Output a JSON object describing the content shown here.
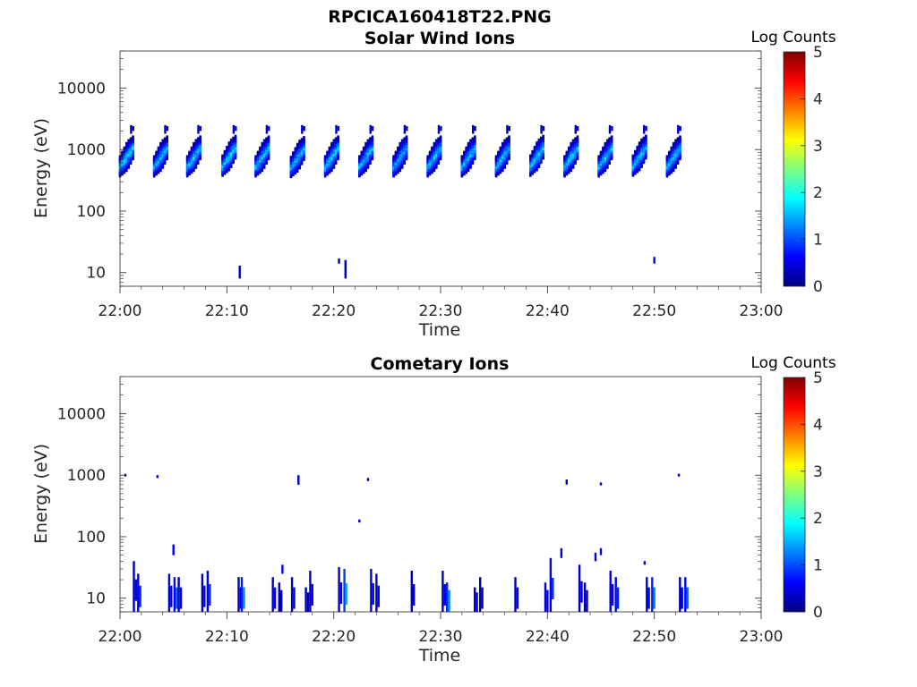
{
  "figure": {
    "title": "RPCICA160418T22.PNG"
  },
  "colorscale": {
    "stops": [
      "#00007f",
      "#0000ff",
      "#007fff",
      "#00ffff",
      "#7fff7f",
      "#ffff00",
      "#ff7f00",
      "#ff0000",
      "#7f0000"
    ]
  },
  "chart_data": [
    {
      "type": "heatmap",
      "title": "Solar Wind Ions",
      "xlabel": "Time",
      "ylabel": "Energy (eV)",
      "xlim": [
        "22:00",
        "23:00"
      ],
      "x_ticks": [
        "22:00",
        "22:10",
        "22:20",
        "22:30",
        "22:40",
        "22:50",
        "23:00"
      ],
      "y_scale": "log",
      "ylim": [
        6,
        40000
      ],
      "y_ticks": [
        10,
        100,
        1000,
        10000
      ],
      "y_tick_labels": [
        "10",
        "100",
        "1000",
        "10000"
      ],
      "colorbar": {
        "label": "Log Counts",
        "range": [
          0,
          5
        ],
        "ticks": [
          "0",
          "1",
          "2",
          "3",
          "4",
          "5"
        ]
      },
      "clusters": [
        {
          "t": 0.6,
          "e_center": 800,
          "peak": 1.7
        },
        {
          "t": 3.8,
          "e_center": 800,
          "peak": 1.6
        },
        {
          "t": 6.9,
          "e_center": 800,
          "peak": 1.6
        },
        {
          "t": 10.2,
          "e_center": 820,
          "peak": 1.7
        },
        {
          "t": 13.3,
          "e_center": 800,
          "peak": 1.6
        },
        {
          "t": 16.6,
          "e_center": 780,
          "peak": 1.6
        },
        {
          "t": 19.8,
          "e_center": 800,
          "peak": 1.7
        },
        {
          "t": 23.0,
          "e_center": 800,
          "peak": 1.6
        },
        {
          "t": 26.2,
          "e_center": 800,
          "peak": 1.5
        },
        {
          "t": 29.4,
          "e_center": 800,
          "peak": 1.6
        },
        {
          "t": 32.6,
          "e_center": 800,
          "peak": 1.6
        },
        {
          "t": 35.8,
          "e_center": 800,
          "peak": 1.6
        },
        {
          "t": 39.0,
          "e_center": 820,
          "peak": 1.7
        },
        {
          "t": 42.2,
          "e_center": 800,
          "peak": 1.7
        },
        {
          "t": 45.4,
          "e_center": 800,
          "peak": 1.6
        },
        {
          "t": 48.6,
          "e_center": 820,
          "peak": 1.6
        },
        {
          "t": 51.8,
          "e_center": 800,
          "peak": 1.6
        }
      ],
      "isolated": [
        {
          "t": 11.1,
          "e_low": 8,
          "e_high": 13,
          "v": 0.3
        },
        {
          "t": 20.4,
          "e_low": 14,
          "e_high": 17,
          "v": 0.3
        },
        {
          "t": 21.0,
          "e_low": 8,
          "e_high": 16,
          "v": 0.3
        },
        {
          "t": 49.9,
          "e_low": 14,
          "e_high": 18,
          "v": 0.6
        }
      ]
    },
    {
      "type": "heatmap",
      "title": "Cometary Ions",
      "xlabel": "Time",
      "ylabel": "Energy (eV)",
      "xlim": [
        "22:00",
        "23:00"
      ],
      "x_ticks": [
        "22:00",
        "22:10",
        "22:20",
        "22:30",
        "22:40",
        "22:50",
        "23:00"
      ],
      "y_scale": "log",
      "ylim": [
        6,
        40000
      ],
      "y_ticks": [
        10,
        100,
        1000,
        10000
      ],
      "y_tick_labels": [
        "10",
        "100",
        "1000",
        "10000"
      ],
      "colorbar": {
        "label": "Log Counts",
        "range": [
          0,
          5
        ],
        "ticks": [
          "0",
          "1",
          "2",
          "3",
          "4",
          "5"
        ]
      },
      "bars": [
        {
          "t": 1.2,
          "e_low": 6,
          "e_high": 40,
          "v": 0.5
        },
        {
          "t": 1.6,
          "e_low": 6,
          "e_high": 25,
          "v": 0.9
        },
        {
          "t": 4.5,
          "e_low": 6,
          "e_high": 25,
          "v": 0.6
        },
        {
          "t": 5.0,
          "e_low": 6,
          "e_high": 22,
          "v": 1.1
        },
        {
          "t": 5.4,
          "e_low": 6,
          "e_high": 22,
          "v": 0.5
        },
        {
          "t": 7.6,
          "e_low": 6,
          "e_high": 25,
          "v": 0.5
        },
        {
          "t": 8.1,
          "e_low": 6,
          "e_high": 28,
          "v": 0.8
        },
        {
          "t": 11.0,
          "e_low": 6,
          "e_high": 22,
          "v": 0.5
        },
        {
          "t": 11.3,
          "e_low": 6,
          "e_high": 22,
          "v": 1.3
        },
        {
          "t": 14.2,
          "e_low": 6,
          "e_high": 22,
          "v": 0.6
        },
        {
          "t": 14.8,
          "e_low": 6,
          "e_high": 18,
          "v": 0.4
        },
        {
          "t": 16.0,
          "e_low": 6,
          "e_high": 22,
          "v": 0.5
        },
        {
          "t": 17.3,
          "e_low": 6,
          "e_high": 15,
          "v": 0.3
        },
        {
          "t": 17.7,
          "e_low": 6,
          "e_high": 28,
          "v": 0.6
        },
        {
          "t": 20.4,
          "e_low": 6,
          "e_high": 32,
          "v": 0.6
        },
        {
          "t": 20.9,
          "e_low": 6,
          "e_high": 30,
          "v": 1.5
        },
        {
          "t": 23.4,
          "e_low": 6,
          "e_high": 30,
          "v": 0.7
        },
        {
          "t": 23.9,
          "e_low": 6,
          "e_high": 25,
          "v": 0.6
        },
        {
          "t": 27.2,
          "e_low": 6,
          "e_high": 28,
          "v": 0.5
        },
        {
          "t": 30.1,
          "e_low": 6,
          "e_high": 28,
          "v": 0.5
        },
        {
          "t": 30.5,
          "e_low": 6,
          "e_high": 18,
          "v": 1.3
        },
        {
          "t": 33.1,
          "e_low": 6,
          "e_high": 15,
          "v": 0.6
        },
        {
          "t": 33.6,
          "e_low": 6,
          "e_high": 22,
          "v": 0.3
        },
        {
          "t": 36.9,
          "e_low": 6,
          "e_high": 22,
          "v": 0.5
        },
        {
          "t": 39.7,
          "e_low": 6,
          "e_high": 18,
          "v": 0.6
        },
        {
          "t": 40.2,
          "e_low": 6,
          "e_high": 45,
          "v": 0.8
        },
        {
          "t": 42.9,
          "e_low": 6,
          "e_high": 35,
          "v": 0.5
        },
        {
          "t": 43.4,
          "e_low": 6,
          "e_high": 18,
          "v": 0.3
        },
        {
          "t": 45.8,
          "e_low": 6,
          "e_high": 28,
          "v": 0.6
        },
        {
          "t": 46.3,
          "e_low": 6,
          "e_high": 22,
          "v": 0.8
        },
        {
          "t": 49.2,
          "e_low": 6,
          "e_high": 22,
          "v": 0.7
        },
        {
          "t": 49.7,
          "e_low": 6,
          "e_high": 22,
          "v": 1.3
        },
        {
          "t": 52.3,
          "e_low": 6,
          "e_high": 22,
          "v": 0.4
        },
        {
          "t": 52.8,
          "e_low": 6,
          "e_high": 22,
          "v": 1.1
        }
      ],
      "isolated": [
        {
          "t": 0.4,
          "e_low": 950,
          "e_high": 1050,
          "v": 0.3
        },
        {
          "t": 3.4,
          "e_low": 900,
          "e_high": 1000,
          "v": 0.3
        },
        {
          "t": 16.6,
          "e_low": 700,
          "e_high": 1000,
          "v": 0.3
        },
        {
          "t": 22.3,
          "e_low": 170,
          "e_high": 190,
          "v": 0.3
        },
        {
          "t": 23.1,
          "e_low": 800,
          "e_high": 900,
          "v": 0.3
        },
        {
          "t": 41.7,
          "e_low": 700,
          "e_high": 850,
          "v": 0.3
        },
        {
          "t": 44.9,
          "e_low": 680,
          "e_high": 760,
          "v": 0.3
        },
        {
          "t": 52.2,
          "e_low": 950,
          "e_high": 1050,
          "v": 0.3
        },
        {
          "t": 4.9,
          "e_low": 50,
          "e_high": 75,
          "v": 0.6
        },
        {
          "t": 15.1,
          "e_low": 25,
          "e_high": 35,
          "v": 0.6
        },
        {
          "t": 41.2,
          "e_low": 45,
          "e_high": 65,
          "v": 0.4
        },
        {
          "t": 44.4,
          "e_low": 40,
          "e_high": 55,
          "v": 0.4
        },
        {
          "t": 44.9,
          "e_low": 50,
          "e_high": 65,
          "v": 0.4
        },
        {
          "t": 49.0,
          "e_low": 35,
          "e_high": 40,
          "v": 0.3
        }
      ]
    }
  ]
}
